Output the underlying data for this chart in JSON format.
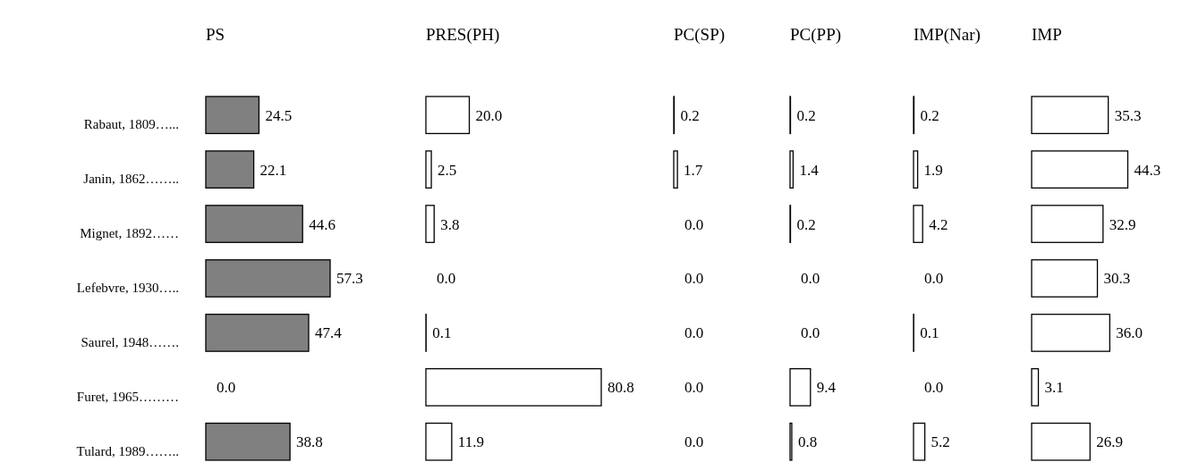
{
  "chart_data": [
    {
      "type": "bar",
      "orientation": "horizontal",
      "title": "PS",
      "categories": [
        "Rabaut, 1809…...",
        "Janin, 1862……..",
        "Mignet, 1892……",
        "Lefebvre, 1930…..",
        "Saurel, 1948…….",
        "Furet, 1965………",
        "Tulard, 1989…….."
      ],
      "values": [
        24.5,
        22.1,
        44.6,
        57.3,
        47.4,
        0.0,
        38.8
      ],
      "value_labels": [
        "24.5",
        "22.1",
        "44.6",
        "57.3",
        "47.4",
        "0.0",
        "38.8"
      ],
      "color": "#808080",
      "tick_labels": "y"
    },
    {
      "type": "bar",
      "orientation": "horizontal",
      "title": "PRES(PH)",
      "categories": [
        null,
        null,
        null,
        null,
        null,
        null,
        null
      ],
      "values": [
        20.0,
        2.5,
        3.8,
        0.0,
        0.1,
        80.8,
        11.9
      ],
      "value_labels": [
        "20.0",
        "2.5",
        "3.8",
        "0.0",
        "0.1",
        "80.8",
        "11.9"
      ],
      "color": "#ffffff",
      "tick_labels": false
    },
    {
      "type": "bar",
      "orientation": "horizontal",
      "title": "PC(SP)",
      "categories": [
        null,
        null,
        null,
        null,
        null,
        null,
        null
      ],
      "values": [
        0.2,
        1.7,
        0.0,
        0.0,
        0.0,
        0.0,
        0.0
      ],
      "value_labels": [
        "0.2",
        "1.7",
        "0.0",
        "0.0",
        "0.0",
        "0.0",
        "0.0"
      ],
      "color": "#ffffff",
      "tick_labels": false
    },
    {
      "type": "bar",
      "orientation": "horizontal",
      "title": "PC(PP)",
      "categories": [
        null,
        null,
        null,
        null,
        null,
        null,
        null
      ],
      "values": [
        0.2,
        1.4,
        0.2,
        0.0,
        0.0,
        9.4,
        0.8
      ],
      "value_labels": [
        "0.2",
        "1.4",
        "0.2",
        "0.0",
        "0.0",
        "9.4",
        "0.8"
      ],
      "color": "#ffffff",
      "tick_labels": false
    },
    {
      "type": "bar",
      "orientation": "horizontal",
      "title": "IMP(Nar)",
      "categories": [
        null,
        null,
        null,
        null,
        null,
        null,
        null
      ],
      "values": [
        0.2,
        1.9,
        4.2,
        0.0,
        0.1,
        0.0,
        5.2
      ],
      "value_labels": [
        "0.2",
        "1.9",
        "4.2",
        "0.0",
        "0.1",
        "0.0",
        "5.2"
      ],
      "color": "#ffffff",
      "tick_labels": false
    },
    {
      "type": "bar",
      "orientation": "horizontal",
      "title": "IMP",
      "categories": [
        null,
        null,
        null,
        null,
        null,
        null,
        null
      ],
      "values": [
        35.3,
        44.3,
        32.9,
        30.3,
        36.0,
        3.1,
        26.9
      ],
      "value_labels": [
        "35.3",
        "44.3",
        "32.9",
        "30.3",
        "36.0",
        "3.1",
        "26.9"
      ],
      "color": "#ffffff",
      "tick_labels": false
    }
  ]
}
